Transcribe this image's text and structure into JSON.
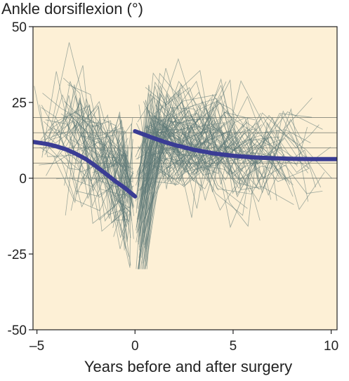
{
  "chart_data": {
    "type": "line",
    "title": "Ankle dorsiflexion (°)",
    "xlabel": "Years before and after surgery",
    "ylabel": "",
    "xlim": [
      -5.2,
      10.3
    ],
    "ylim": [
      -50,
      50
    ],
    "x_ticks": [
      -5,
      0,
      5,
      10
    ],
    "y_ticks": [
      -50,
      -25,
      0,
      25,
      50
    ],
    "grid": false,
    "background_color": "#fdf0d6",
    "individual_color": "#5f7a78",
    "mean_color": "#3a3c94",
    "reference_lines_y": [
      0,
      5,
      10,
      15,
      20
    ],
    "series": [
      {
        "role": "pre-surgery-mean",
        "x": [
          -5.2,
          -4.5,
          -4,
          -3.5,
          -3,
          -2.5,
          -2,
          -1.5,
          -1,
          -0.5,
          0
        ],
        "values": [
          12,
          11.3,
          10.5,
          9.5,
          8,
          6.3,
          4,
          1.5,
          -1,
          -3.3,
          -6
        ]
      },
      {
        "role": "post-surgery-mean",
        "x": [
          0,
          0.5,
          1,
          1.5,
          2,
          2.5,
          3,
          3.5,
          4,
          5,
          6,
          7,
          8,
          9,
          10.3
        ],
        "values": [
          15.5,
          14.3,
          13.1,
          12,
          11,
          10.2,
          9.4,
          8.8,
          8.2,
          7.4,
          6.9,
          6.6,
          6.4,
          6.3,
          6.3
        ]
      }
    ]
  }
}
